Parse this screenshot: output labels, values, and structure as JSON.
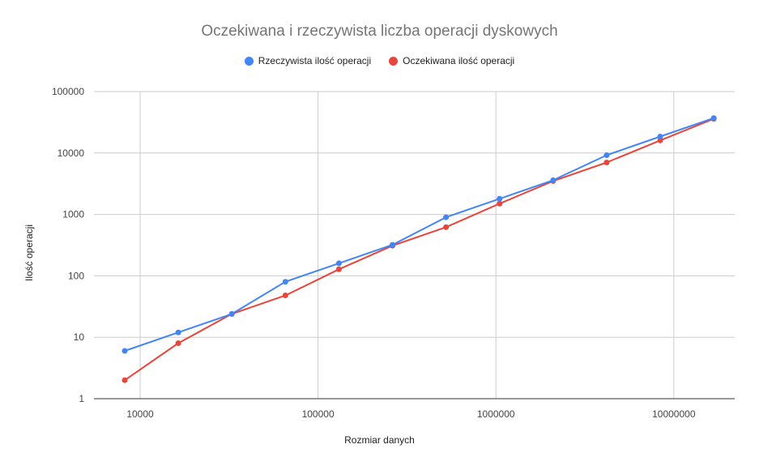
{
  "chart_data": {
    "type": "line",
    "title": "Oczekiwana i rzeczywista liczba operacji dyskowych",
    "xlabel": "Rozmiar danych",
    "ylabel": "Ilość operacji",
    "x_scale": "log",
    "y_scale": "log",
    "xlim": [
      5500,
      22000000
    ],
    "ylim": [
      1,
      100000
    ],
    "x_ticks": [
      10000,
      100000,
      1000000,
      10000000
    ],
    "x_tick_labels": [
      "10000",
      "100000",
      "1000000",
      "10000000"
    ],
    "y_ticks": [
      1,
      10,
      100,
      1000,
      10000,
      100000
    ],
    "y_tick_labels": [
      "1",
      "10",
      "100",
      "1000",
      "10000",
      "100000"
    ],
    "grid": true,
    "legend_position": "top",
    "x": [
      8192,
      16384,
      32768,
      65536,
      131072,
      262144,
      524288,
      1048576,
      2097152,
      4194304,
      8388608,
      16777216
    ],
    "series": [
      {
        "name": "Rzeczywista ilość operacji",
        "color": "#4285f4",
        "values": [
          6,
          12,
          24,
          80,
          160,
          320,
          900,
          1800,
          3600,
          9200,
          18500,
          37000
        ]
      },
      {
        "name": "Oczekiwana ilość operacji",
        "color": "#e8453c",
        "values": [
          2,
          8,
          24,
          48,
          128,
          310,
          620,
          1500,
          3500,
          7000,
          16000,
          36000
        ]
      }
    ]
  }
}
